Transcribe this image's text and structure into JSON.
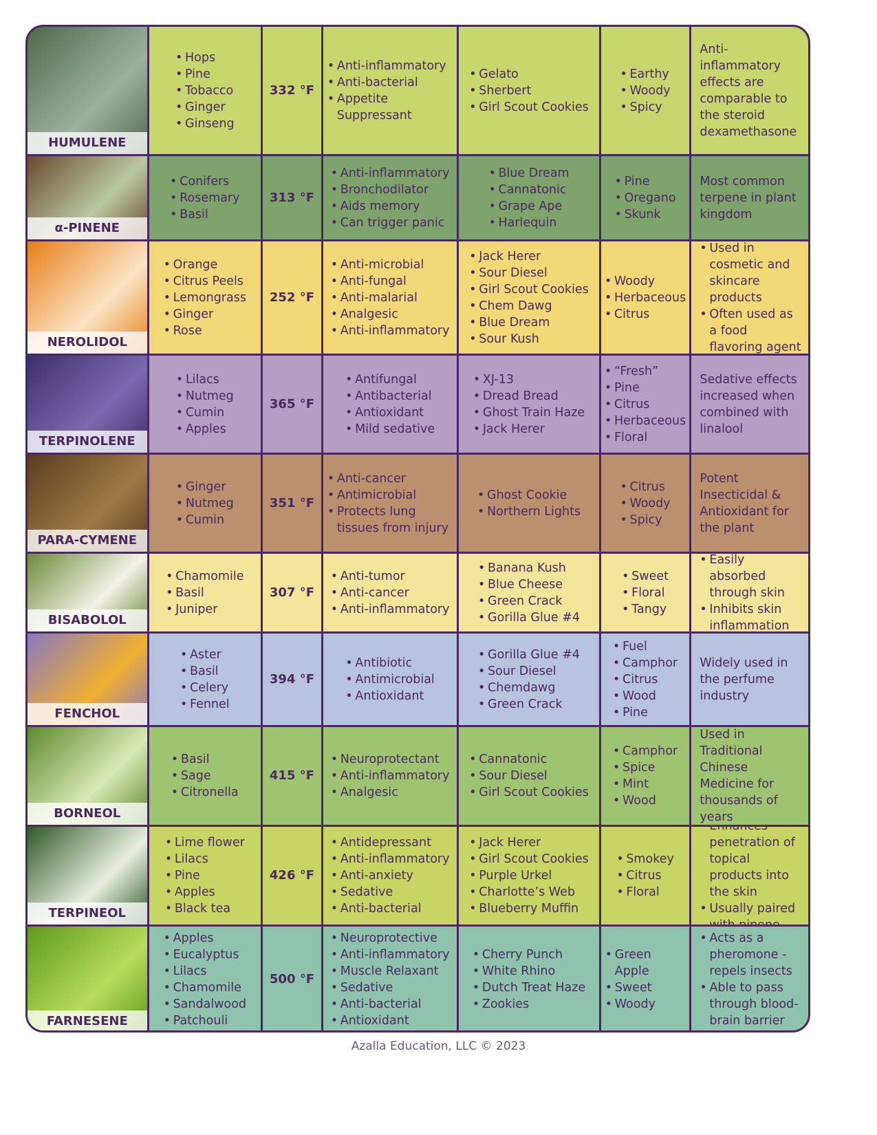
{
  "columns_widths_note": null,
  "rows": [
    {
      "name": "HUMULENE",
      "color": "#c8d66e",
      "photo": [
        "#4f6a4a",
        "#9db0a0"
      ],
      "sources": [
        "Hops",
        "Pine",
        "Tobacco",
        "Ginger",
        "Ginseng"
      ],
      "temp": "332 °F",
      "effects": [
        "Anti-inflammatory",
        "Anti-bacterial",
        "Appetite Suppressant"
      ],
      "strains": [
        "Gelato",
        "Sherbert",
        "Girl Scout Cookies"
      ],
      "aroma": [
        "Earthy",
        "Woody",
        "Spicy"
      ],
      "notes": {
        "bullets": false,
        "items": [
          "Anti-inflammatory effects are comparable to the steroid dexamethasone"
        ]
      }
    },
    {
      "name": "α-PINENE",
      "color": "#7fa36c",
      "photo": [
        "#6b4a2e",
        "#b9c7a3"
      ],
      "sources": [
        "Conifers",
        "Rosemary",
        "Basil"
      ],
      "temp": "313 °F",
      "effects": [
        "Anti-inflammatory",
        "Bronchodilator",
        "Aids memory",
        "Can trigger panic"
      ],
      "strains": [
        "Blue Dream",
        "Cannatonic",
        "Grape Ape",
        "Harlequin"
      ],
      "aroma": [
        "Pine",
        "Oregano",
        "Skunk"
      ],
      "notes": {
        "bullets": false,
        "items": [
          "Most common terpene in plant kingdom"
        ]
      }
    },
    {
      "name": "NEROLIDOL",
      "color": "#f3d878",
      "photo": [
        "#e8801a",
        "#fbe3c4"
      ],
      "sources": [
        "Orange",
        "Citrus Peels",
        "Lemongrass",
        "Ginger",
        "Rose"
      ],
      "temp": "252 °F",
      "effects": [
        "Anti-microbial",
        "Anti-fungal",
        "Anti-malarial",
        "Analgesic",
        "Anti-inflammatory"
      ],
      "strains": [
        "Jack Herer",
        "Sour Diesel",
        "Girl Scout Cookies",
        "Chem Dawg",
        "Blue Dream",
        "Sour Kush"
      ],
      "aroma": [
        "Woody",
        "Herbaceous",
        "Citrus"
      ],
      "notes": {
        "bullets": true,
        "items": [
          "Used in cosmetic and skincare products",
          "Often used as a food flavoring agent"
        ]
      }
    },
    {
      "name": "TERPINOLENE",
      "color": "#b59dc4",
      "photo": [
        "#3d2f6e",
        "#7a6bb0"
      ],
      "sources": [
        "Lilacs",
        "Nutmeg",
        "Cumin",
        "Apples"
      ],
      "temp": "365 °F",
      "effects": [
        "Antifungal",
        "Antibacterial",
        "Antioxidant",
        "Mild sedative"
      ],
      "strains": [
        "XJ-13",
        "Dread Bread",
        "Ghost Train Haze",
        "Jack Herer"
      ],
      "aroma": [
        "“Fresh”",
        "Pine",
        "Citrus",
        "Herbaceous",
        "Floral"
      ],
      "notes": {
        "bullets": false,
        "items": [
          "Sedative effects increased when combined with linalool"
        ]
      }
    },
    {
      "name": "PARA-CYMENE",
      "color": "#bb906e",
      "photo": [
        "#5a3d1f",
        "#a07a45"
      ],
      "sources": [
        "Ginger",
        "Nutmeg",
        "Cumin"
      ],
      "temp": "351 °F",
      "effects": [
        "Anti-cancer",
        "Antimicrobial",
        "Protects lung tissues from injury"
      ],
      "strains": [
        "Ghost Cookie",
        "Northern Lights"
      ],
      "aroma": [
        "Citrus",
        "Woody",
        "Spicy"
      ],
      "notes": {
        "bullets": false,
        "items": [
          "Potent Insecticidal & Antioxidant for the plant"
        ]
      }
    },
    {
      "name": "BISABOLOL",
      "color": "#f3e59a",
      "photo": [
        "#6f8a3a",
        "#f2f2e6"
      ],
      "sources": [
        "Chamomile",
        "Basil",
        "Juniper"
      ],
      "temp": "307 °F",
      "effects": [
        "Anti-tumor",
        "Anti-cancer",
        "Anti-inflammatory"
      ],
      "strains": [
        "Banana Kush",
        "Blue Cheese",
        "Green Crack",
        "Gorilla Glue #4"
      ],
      "aroma": [
        "Sweet",
        "Floral",
        "Tangy"
      ],
      "notes": {
        "bullets": true,
        "items": [
          "Easily absorbed through skin",
          "Inhibits skin inflammation"
        ]
      }
    },
    {
      "name": "FENCHOL",
      "color": "#b8c4df",
      "photo": [
        "#8a78c0",
        "#f0b030"
      ],
      "sources": [
        "Aster",
        "Basil",
        "Celery",
        "Fennel"
      ],
      "temp": "394 °F",
      "effects": [
        "Antibiotic",
        "Antimicrobial",
        "Antioxidant"
      ],
      "strains": [
        "Gorilla Glue #4",
        "Sour Diesel",
        "Chemdawg",
        "Green Crack"
      ],
      "aroma": [
        "Fuel",
        "Camphor",
        "Citrus",
        "Wood",
        "Pine"
      ],
      "notes": {
        "bullets": false,
        "items": [
          "Widely used in the perfume industry"
        ]
      }
    },
    {
      "name": "BORNEOL",
      "color": "#9fc471",
      "photo": [
        "#5d8a2e",
        "#d9e8b5"
      ],
      "sources": [
        "Basil",
        "Sage",
        "Citronella"
      ],
      "temp": "415 °F",
      "effects": [
        "Neuroprotectant",
        "Anti-inflammatory",
        "Analgesic"
      ],
      "strains": [
        "Cannatonic",
        "Sour Diesel",
        "Girl Scout Cookies"
      ],
      "aroma": [
        "Camphor",
        "Spice",
        "Mint",
        "Wood"
      ],
      "notes": {
        "bullets": false,
        "items": [
          "Used in Traditional Chinese Medicine for thousands of years"
        ]
      }
    },
    {
      "name": "TERPINEOL",
      "color": "#c6d564",
      "photo": [
        "#2f5a28",
        "#e9efe0"
      ],
      "sources": [
        "Lime flower",
        "Lilacs",
        "Pine",
        "Apples",
        "Black tea"
      ],
      "temp": "426 °F",
      "effects": [
        "Antidepressant",
        "Anti-inflammatory",
        "Anti-anxiety",
        "Sedative",
        "Anti-bacterial"
      ],
      "strains": [
        "Jack Herer",
        "Girl Scout Cookies",
        "Purple Urkel",
        "Charlotte’s Web",
        "Blueberry Muffin"
      ],
      "aroma": [
        "Smokey",
        "Citrus",
        "Floral"
      ],
      "notes": {
        "bullets": true,
        "items": [
          "Enhances penetration of topical products into the skin",
          "Usually paired with pinene"
        ]
      }
    },
    {
      "name": "FARNESENE",
      "color": "#8fc3ad",
      "photo": [
        "#5e9a1c",
        "#b7dc5a"
      ],
      "sources": [
        "Apples",
        "Eucalyptus",
        "Lilacs",
        "Chamomile",
        "Sandalwood",
        "Patchouli"
      ],
      "temp": "500 °F",
      "effects": [
        "Neuroprotective",
        "Anti-inflammatory",
        "Muscle Relaxant",
        "Sedative",
        "Anti-bacterial",
        "Antioxidant"
      ],
      "strains": [
        "Cherry Punch",
        "White Rhino",
        "Dutch Treat Haze",
        "Zookies"
      ],
      "aroma": [
        "Green Apple",
        "Sweet",
        "Woody"
      ],
      "notes": {
        "bullets": true,
        "items": [
          "Acts as a pheromone - repels insects",
          "Able to pass through blood-brain barrier"
        ]
      }
    }
  ],
  "footer": "Azalla Education, LLC © 2023"
}
